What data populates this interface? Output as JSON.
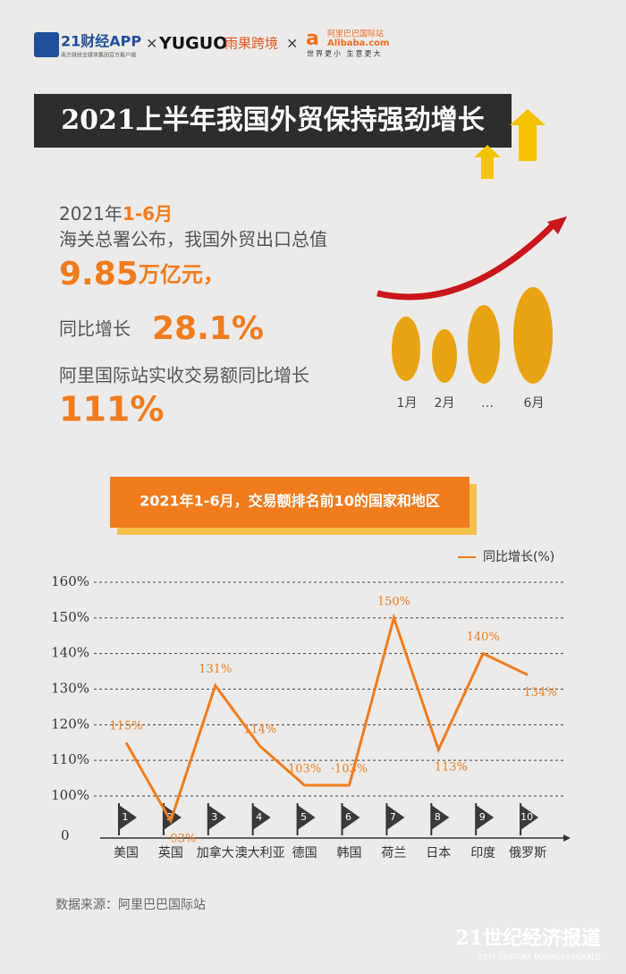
{
  "header": {
    "logo1": "21财经APP",
    "logo1_sub": "南方财经全媒体集团官方客户端",
    "sep": "×",
    "logo2": "YUGUO",
    "logo2_cn": "雨果跨境",
    "logo3": "Alibaba.com",
    "logo3_cn": "阿里巴巴国际站",
    "logo3_slogan": "世界更小 生意更大"
  },
  "title": "2021上半年我国外贸保持强劲增长",
  "summary": {
    "period_prefix": "2021年",
    "period": "1-6月",
    "line1": "海关总署公布，我国外贸出口总值",
    "export_value": "9.85",
    "export_unit": "万亿元，",
    "growth_label": "同比增长",
    "growth": "28.1%",
    "ali_label": "阿里国际站实收交易额同比增长",
    "ali_growth": "111%"
  },
  "illustration": {
    "months": [
      "1月",
      "2月",
      "…",
      "6月"
    ]
  },
  "chart_data": {
    "type": "line",
    "title": "2021年1-6月，交易额排名前10的国家和地区",
    "categories": [
      "美国",
      "英国",
      "加拿大",
      "澳大利亚",
      "德国",
      "韩国",
      "荷兰",
      "日本",
      "印度",
      "俄罗斯"
    ],
    "ranks": [
      1,
      2,
      3,
      4,
      5,
      6,
      7,
      8,
      9,
      10
    ],
    "series": [
      {
        "name": "同比增长(%)",
        "color": "#f07c1e",
        "values": [
          115,
          93,
          131,
          114,
          103,
          103,
          150,
          113,
          140,
          134
        ],
        "value_labels": [
          "115%",
          "93%",
          "131%",
          "114%",
          "103%",
          "·103%",
          "150%",
          "113%",
          "140%",
          "134%"
        ]
      }
    ],
    "ylim": [
      88.7,
      160
    ],
    "yticks": [
      {
        "value": 100,
        "label": "100%"
      },
      {
        "value": 110,
        "label": "110%"
      },
      {
        "value": 120,
        "label": "120%"
      },
      {
        "value": 130,
        "label": "130%"
      },
      {
        "value": 140,
        "label": "140%"
      },
      {
        "value": 150,
        "label": "150%"
      },
      {
        "value": 160,
        "label": "160%"
      }
    ],
    "y_axis_origin_label": "0",
    "grid": true,
    "legend": "top-right"
  },
  "source": "数据来源：阿里巴巴国际站",
  "footer": {
    "brand": "21世纪经济报道",
    "brand_en": "21ST CENTURY BUSINESS HERALD"
  }
}
